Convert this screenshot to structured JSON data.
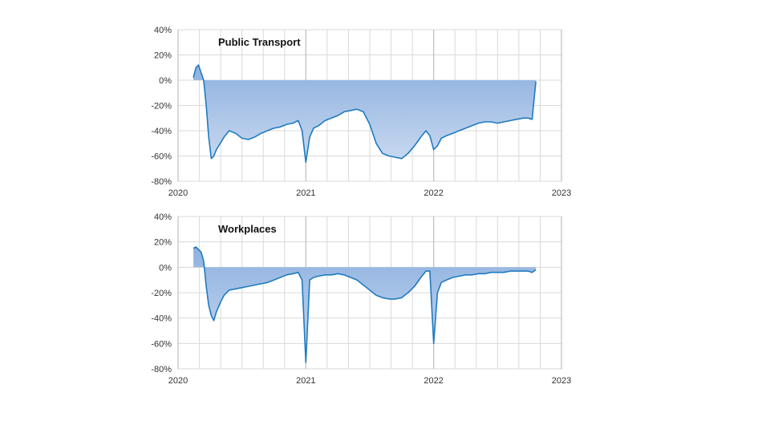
{
  "colors": {
    "line": "#1f7bbf",
    "fill_top": "#8eb1df",
    "fill_bottom": "#c9d9f0",
    "grid": "#d9d9d9",
    "axis": "#bfbfbf"
  },
  "chart_data": [
    {
      "type": "area",
      "title": "Public Transport",
      "xlabel": "",
      "ylabel": "",
      "x_ticks": [
        "2020",
        "2021",
        "2022",
        "2023"
      ],
      "y_ticks": [
        "40%",
        "20%",
        "0%",
        "-20%",
        "-40%",
        "-60%",
        "-80%"
      ],
      "xlim": [
        2020,
        2023
      ],
      "ylim": [
        -80,
        40
      ],
      "grid": true,
      "legend": "none",
      "series": [
        {
          "x": [
            2020.12,
            2020.14,
            2020.16,
            2020.18,
            2020.2,
            2020.22,
            2020.24,
            2020.26,
            2020.28,
            2020.3,
            2020.33,
            2020.36,
            2020.4,
            2020.45,
            2020.5,
            2020.55,
            2020.6,
            2020.65,
            2020.7,
            2020.75,
            2020.8,
            2020.85,
            2020.9,
            2020.94,
            2020.97,
            2021.0,
            2021.03,
            2021.06,
            2021.1,
            2021.15,
            2021.2,
            2021.25,
            2021.3,
            2021.35,
            2021.4,
            2021.45,
            2021.5,
            2021.55,
            2021.6,
            2021.65,
            2021.7,
            2021.75,
            2021.8,
            2021.85,
            2021.9,
            2021.94,
            2021.97,
            2022.0,
            2022.03,
            2022.06,
            2022.1,
            2022.15,
            2022.2,
            2022.25,
            2022.3,
            2022.35,
            2022.4,
            2022.45,
            2022.5,
            2022.55,
            2022.6,
            2022.65,
            2022.7,
            2022.74,
            2022.77,
            2022.8
          ],
          "y": [
            2,
            10,
            12,
            6,
            0,
            -20,
            -45,
            -62,
            -60,
            -55,
            -50,
            -45,
            -40,
            -42,
            -46,
            -47,
            -45,
            -42,
            -40,
            -38,
            -37,
            -35,
            -34,
            -32,
            -40,
            -65,
            -45,
            -38,
            -36,
            -32,
            -30,
            -28,
            -25,
            -24,
            -23,
            -25,
            -35,
            -50,
            -58,
            -60,
            -61,
            -62,
            -58,
            -52,
            -45,
            -40,
            -44,
            -55,
            -52,
            -46,
            -44,
            -42,
            -40,
            -38,
            -36,
            -34,
            -33,
            -33,
            -34,
            -33,
            -32,
            -31,
            -30,
            -30,
            -31,
            -1
          ]
        }
      ]
    },
    {
      "type": "area",
      "title": "Workplaces",
      "xlabel": "",
      "ylabel": "",
      "x_ticks": [
        "2020",
        "2021",
        "2022",
        "2023"
      ],
      "y_ticks": [
        "40%",
        "20%",
        "0%",
        "-20%",
        "-40%",
        "-60%",
        "-80%"
      ],
      "xlim": [
        2020,
        2023
      ],
      "ylim": [
        -80,
        40
      ],
      "grid": true,
      "legend": "none",
      "series": [
        {
          "x": [
            2020.12,
            2020.14,
            2020.16,
            2020.18,
            2020.2,
            2020.22,
            2020.24,
            2020.26,
            2020.28,
            2020.3,
            2020.33,
            2020.36,
            2020.4,
            2020.45,
            2020.5,
            2020.55,
            2020.6,
            2020.65,
            2020.7,
            2020.75,
            2020.8,
            2020.85,
            2020.9,
            2020.94,
            2020.97,
            2021.0,
            2021.03,
            2021.06,
            2021.1,
            2021.15,
            2021.2,
            2021.25,
            2021.3,
            2021.35,
            2021.4,
            2021.45,
            2021.5,
            2021.55,
            2021.6,
            2021.65,
            2021.7,
            2021.75,
            2021.8,
            2021.85,
            2021.9,
            2021.94,
            2021.97,
            2022.0,
            2022.03,
            2022.06,
            2022.1,
            2022.15,
            2022.2,
            2022.25,
            2022.3,
            2022.35,
            2022.4,
            2022.45,
            2022.5,
            2022.55,
            2022.6,
            2022.65,
            2022.7,
            2022.74,
            2022.77,
            2022.8
          ],
          "y": [
            15,
            16,
            14,
            12,
            5,
            -15,
            -30,
            -38,
            -42,
            -35,
            -28,
            -22,
            -18,
            -17,
            -16,
            -15,
            -14,
            -13,
            -12,
            -10,
            -8,
            -6,
            -5,
            -4,
            -10,
            -75,
            -10,
            -8,
            -7,
            -6,
            -6,
            -5,
            -6,
            -8,
            -10,
            -14,
            -18,
            -22,
            -24,
            -25,
            -25,
            -24,
            -20,
            -15,
            -8,
            -3,
            -3,
            -60,
            -20,
            -12,
            -10,
            -8,
            -7,
            -6,
            -6,
            -5,
            -5,
            -4,
            -4,
            -4,
            -3,
            -3,
            -3,
            -3,
            -4,
            -2
          ]
        }
      ]
    }
  ]
}
